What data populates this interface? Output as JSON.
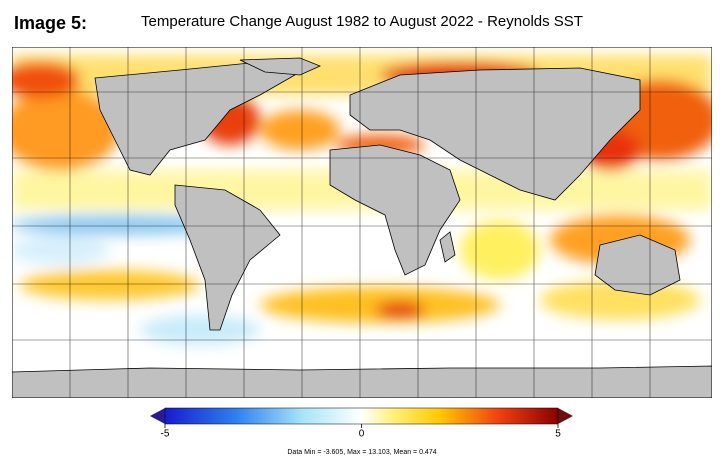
{
  "label": "Image 5:",
  "title": "Temperature Change August 1982 to August 2022 - Reynolds SST",
  "colorbar": {
    "lim": [
      -5,
      5
    ],
    "ticks": [
      -5,
      0,
      5
    ]
  },
  "stats": "Data Min = -3.605, Max = 13.103, Mean = 0.474"
}
